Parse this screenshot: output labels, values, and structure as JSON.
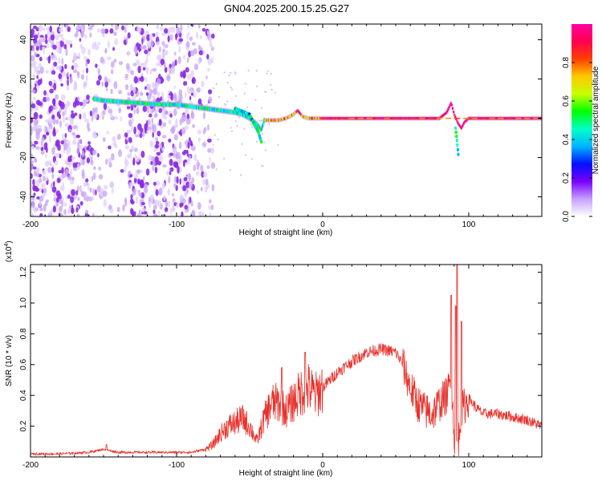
{
  "title": "GN04.2025.200.15.25.G27",
  "chart_data": [
    {
      "type": "heatmap",
      "xlabel": "Height of straight line (km)",
      "ylabel": "Frequency (Hz)",
      "xlim": [
        -200,
        150
      ],
      "ylim": [
        -50,
        48
      ],
      "xticks": [
        -200,
        -100,
        0,
        100
      ],
      "yticks": [
        -40,
        -20,
        0,
        20,
        40
      ],
      "colorbar": {
        "label": "Normalized spectral amplitude",
        "range": [
          0,
          1
        ],
        "ticks": [
          0.0,
          0.2,
          0.4,
          0.6,
          0.8
        ],
        "colors": [
          "#ffffff",
          "#c8a0ff",
          "#7b00ff",
          "#0010ff",
          "#00b4ff",
          "#00ffc8",
          "#00ff00",
          "#c8ff00",
          "#ffc800",
          "#ff4000",
          "#ff0050",
          "#ff00a0"
        ]
      },
      "ridge": {
        "x": [
          -157,
          -150,
          -140,
          -130,
          -120,
          -110,
          -100,
          -90,
          -80,
          -70,
          -60,
          -55,
          -50,
          -45,
          -42,
          -40,
          -35,
          -30,
          -25,
          -20,
          -17,
          -14,
          -10,
          -5,
          0,
          20,
          40,
          60,
          80,
          85,
          88,
          90,
          93,
          95,
          97,
          100,
          150
        ],
        "y": [
          10,
          9,
          8.5,
          8,
          7.5,
          7,
          7,
          6,
          5,
          4,
          3,
          2,
          0,
          -3,
          -6,
          -1,
          -1,
          -1,
          0,
          2,
          4,
          1,
          0,
          0,
          0,
          0,
          0,
          0,
          0,
          3,
          8,
          2,
          -3,
          -5,
          -2,
          0,
          0
        ]
      },
      "branches": [
        {
          "x": [
            -60,
            -50,
            -47,
            -44,
            -42
          ],
          "y": [
            5,
            2,
            -3,
            -7,
            -12
          ]
        },
        {
          "x": [
            91,
            92,
            93
          ],
          "y": [
            -5,
            -12,
            -20
          ]
        }
      ]
    },
    {
      "type": "line",
      "xlabel": "Height of straight line (km)",
      "ylabel": "SNR (10 * v/v)",
      "y_multiplier": "(x10^4)",
      "xlim": [
        -200,
        150
      ],
      "ylim": [
        0,
        1.25
      ],
      "xticks": [
        -200,
        -100,
        0,
        100
      ],
      "yticks": [
        0.2,
        0.4,
        0.6,
        0.8,
        1.0,
        1.2
      ],
      "color": "#e8302a",
      "envelope": {
        "x": [
          -200,
          -180,
          -160,
          -150,
          -140,
          -120,
          -100,
          -90,
          -80,
          -75,
          -70,
          -65,
          -60,
          -55,
          -50,
          -45,
          -40,
          -35,
          -30,
          -25,
          -20,
          -15,
          -10,
          -5,
          0,
          10,
          20,
          30,
          40,
          50,
          55,
          60,
          65,
          70,
          75,
          80,
          85,
          88,
          90,
          92,
          93,
          95,
          100,
          105,
          110,
          120,
          130,
          140,
          150
        ],
        "y": [
          0.02,
          0.02,
          0.03,
          0.05,
          0.03,
          0.03,
          0.03,
          0.03,
          0.05,
          0.08,
          0.15,
          0.2,
          0.22,
          0.25,
          0.2,
          0.1,
          0.25,
          0.35,
          0.35,
          0.3,
          0.36,
          0.42,
          0.45,
          0.4,
          0.45,
          0.55,
          0.62,
          0.68,
          0.7,
          0.68,
          0.6,
          0.45,
          0.35,
          0.3,
          0.28,
          0.35,
          0.4,
          0.5,
          0.15,
          0.05,
          0.1,
          0.3,
          0.38,
          0.32,
          0.28,
          0.28,
          0.26,
          0.24,
          0.2
        ]
      },
      "peaks": [
        {
          "x": -148,
          "y": 0.08
        },
        {
          "x": -12,
          "y": 0.68
        },
        {
          "x": -28,
          "y": 0.58
        },
        {
          "x": 88,
          "y": 1.05
        },
        {
          "x": 91,
          "y": 0.98
        },
        {
          "x": 92,
          "y": 1.25
        },
        {
          "x": 95,
          "y": 0.88
        }
      ]
    }
  ]
}
